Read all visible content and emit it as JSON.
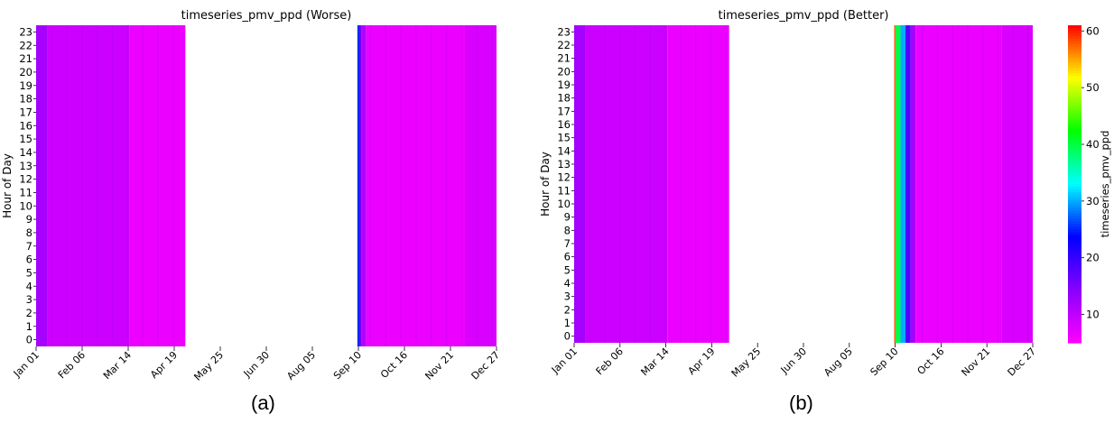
{
  "chart_data": [
    {
      "type": "heatmap",
      "title": "timeseries_pmv_ppd (Worse)",
      "ylabel": "Hour of Day",
      "xlabel": "",
      "y_ticks": [
        "0",
        "1",
        "2",
        "3",
        "4",
        "5",
        "6",
        "7",
        "8",
        "9",
        "10",
        "11",
        "12",
        "13",
        "14",
        "15",
        "16",
        "17",
        "18",
        "19",
        "20",
        "21",
        "22",
        "23"
      ],
      "x_ticks": [
        "Jan 01",
        "Feb 06",
        "Mar 14",
        "Apr 19",
        "May 25",
        "Jun 30",
        "Aug 05",
        "Sep 10",
        "Oct 16",
        "Nov 21",
        "Dec 27"
      ],
      "x_range_days": [
        1,
        365
      ],
      "data_gap_days": [
        119,
        255
      ],
      "segments": [
        {
          "start_day": 1,
          "end_day": 10,
          "value": 12
        },
        {
          "start_day": 10,
          "end_day": 75,
          "value": 9
        },
        {
          "start_day": 75,
          "end_day": 119,
          "value": 6.5
        },
        {
          "start_day": 255,
          "end_day": 256.5,
          "value": 25
        },
        {
          "start_day": 256.5,
          "end_day": 258,
          "value": 16
        },
        {
          "start_day": 258,
          "end_day": 262,
          "value": 11
        },
        {
          "start_day": 262,
          "end_day": 340,
          "value": 6.5
        },
        {
          "start_day": 340,
          "end_day": 365,
          "value": 8
        }
      ],
      "colorbar": {
        "label": "",
        "min": 5,
        "max": 61
      }
    },
    {
      "type": "heatmap",
      "title": "timeseries_pmv_ppd (Better)",
      "ylabel": "Hour of Day",
      "xlabel": "",
      "y_ticks": [
        "0",
        "1",
        "2",
        "3",
        "4",
        "5",
        "6",
        "7",
        "8",
        "9",
        "10",
        "11",
        "12",
        "13",
        "14",
        "15",
        "16",
        "17",
        "18",
        "19",
        "20",
        "21",
        "22",
        "23"
      ],
      "x_ticks": [
        "Jan 01",
        "Feb 06",
        "Mar 14",
        "Apr 19",
        "May 25",
        "Jun 30",
        "Aug 05",
        "Sep 10",
        "Oct 16",
        "Nov 21",
        "Dec 27"
      ],
      "x_range_days": [
        1,
        365
      ],
      "data_gap_days": [
        124,
        255
      ],
      "segments": [
        {
          "start_day": 1,
          "end_day": 10,
          "value": 12
        },
        {
          "start_day": 10,
          "end_day": 75,
          "value": 9
        },
        {
          "start_day": 75,
          "end_day": 124,
          "value": 6.5
        },
        {
          "start_day": 255,
          "end_day": 256,
          "value": 58
        },
        {
          "start_day": 256,
          "end_day": 260,
          "value": 40
        },
        {
          "start_day": 260,
          "end_day": 264,
          "value": 30
        },
        {
          "start_day": 264,
          "end_day": 268,
          "value": 18
        },
        {
          "start_day": 268,
          "end_day": 272,
          "value": 12
        },
        {
          "start_day": 272,
          "end_day": 340,
          "value": 6.5
        },
        {
          "start_day": 340,
          "end_day": 365,
          "value": 8
        }
      ],
      "colorbar": {
        "label": "timeseries_pmv_ppd",
        "min": 5,
        "max": 61,
        "ticks": [
          "10",
          "20",
          "30",
          "40",
          "50",
          "60"
        ]
      }
    }
  ],
  "captions": [
    "(a)",
    "(b)"
  ],
  "colormap": [
    "#ff00ff",
    "#8800ff",
    "#0000ff",
    "#00ffff",
    "#00ff00",
    "#ffff00",
    "#ff0000"
  ]
}
